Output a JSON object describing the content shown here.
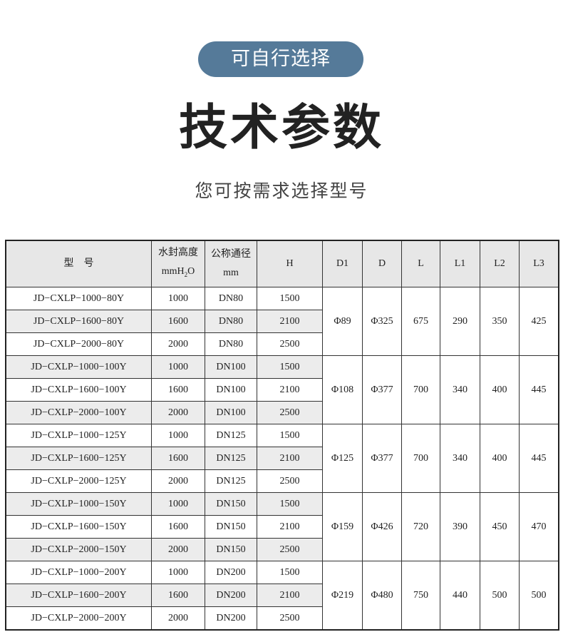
{
  "badge": "可自行选择",
  "title": "技术参数",
  "subtitle": "您可按需求选择型号",
  "table": {
    "headers": {
      "model": "型　号",
      "water_seal_1": "水封高度",
      "water_seal_2a": "mmH",
      "water_seal_2b": "2",
      "water_seal_2c": "O",
      "nominal_1": "公称通径",
      "nominal_2": "mm",
      "H": "H",
      "D1": "D1",
      "D": "D",
      "L": "L",
      "L1": "L1",
      "L2": "L2",
      "L3": "L3"
    },
    "groups": [
      {
        "rows": [
          [
            "JD−CXLP−1000−80Y",
            "1000",
            "DN80",
            "1500"
          ],
          [
            "JD−CXLP−1600−80Y",
            "1600",
            "DN80",
            "2100"
          ],
          [
            "JD−CXLP−2000−80Y",
            "2000",
            "DN80",
            "2500"
          ]
        ],
        "D1": "Φ89",
        "D": "Φ325",
        "L": "675",
        "L1": "290",
        "L2": "350",
        "L3": "425"
      },
      {
        "rows": [
          [
            "JD−CXLP−1000−100Y",
            "1000",
            "DN100",
            "1500"
          ],
          [
            "JD−CXLP−1600−100Y",
            "1600",
            "DN100",
            "2100"
          ],
          [
            "JD−CXLP−2000−100Y",
            "2000",
            "DN100",
            "2500"
          ]
        ],
        "D1": "Φ108",
        "D": "Φ377",
        "L": "700",
        "L1": "340",
        "L2": "400",
        "L3": "445"
      },
      {
        "rows": [
          [
            "JD−CXLP−1000−125Y",
            "1000",
            "DN125",
            "1500"
          ],
          [
            "JD−CXLP−1600−125Y",
            "1600",
            "DN125",
            "2100"
          ],
          [
            "JD−CXLP−2000−125Y",
            "2000",
            "DN125",
            "2500"
          ]
        ],
        "D1": "Φ125",
        "D": "Φ377",
        "L": "700",
        "L1": "340",
        "L2": "400",
        "L3": "445"
      },
      {
        "rows": [
          [
            "JD−CXLP−1000−150Y",
            "1000",
            "DN150",
            "1500"
          ],
          [
            "JD−CXLP−1600−150Y",
            "1600",
            "DN150",
            "2100"
          ],
          [
            "JD−CXLP−2000−150Y",
            "2000",
            "DN150",
            "2500"
          ]
        ],
        "D1": "Φ159",
        "D": "Φ426",
        "L": "720",
        "L1": "390",
        "L2": "450",
        "L3": "470"
      },
      {
        "rows": [
          [
            "JD−CXLP−1000−200Y",
            "1000",
            "DN200",
            "1500"
          ],
          [
            "JD−CXLP−1600−200Y",
            "1600",
            "DN200",
            "2100"
          ],
          [
            "JD−CXLP−2000−200Y",
            "2000",
            "DN200",
            "2500"
          ]
        ],
        "D1": "Φ219",
        "D": "Φ480",
        "L": "750",
        "L1": "440",
        "L2": "500",
        "L3": "500"
      }
    ]
  }
}
